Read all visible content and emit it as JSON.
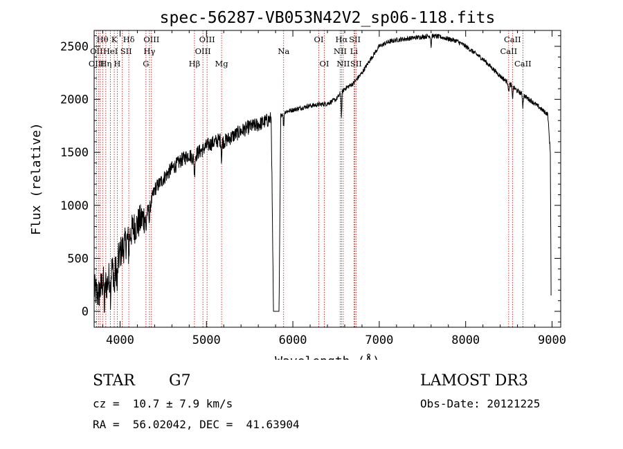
{
  "chart_data": {
    "type": "line",
    "title": "spec-56287-VB053N42V2_sp06-118.fits",
    "xlabel": "Wavelength (Å)",
    "ylabel": "Flux (relative)",
    "xlim": [
      3700,
      9100
    ],
    "ylim": [
      -150,
      2650
    ],
    "xticks": [
      4000,
      5000,
      6000,
      7000,
      8000,
      9000
    ],
    "xtick_labels": [
      "4000",
      "5000",
      "6000",
      "7000",
      "8000",
      "9000"
    ],
    "yticks": [
      0,
      500,
      1000,
      1500,
      2000,
      2500
    ],
    "ytick_labels": [
      "0",
      "500",
      "1000",
      "1500",
      "2000",
      "2500"
    ],
    "grid": false,
    "series": [
      {
        "name": "flux",
        "points": [
          [
            3700,
            200
          ],
          [
            3750,
            150
          ],
          [
            3800,
            280
          ],
          [
            3850,
            250
          ],
          [
            3900,
            400
          ],
          [
            3950,
            380
          ],
          [
            4000,
            550
          ],
          [
            4050,
            620
          ],
          [
            4100,
            700
          ],
          [
            4150,
            780
          ],
          [
            4200,
            820
          ],
          [
            4250,
            870
          ],
          [
            4300,
            900
          ],
          [
            4350,
            1000
          ],
          [
            4400,
            1150
          ],
          [
            4450,
            1200
          ],
          [
            4500,
            1250
          ],
          [
            4550,
            1300
          ],
          [
            4600,
            1350
          ],
          [
            4650,
            1380
          ],
          [
            4700,
            1420
          ],
          [
            4750,
            1450
          ],
          [
            4800,
            1480
          ],
          [
            4850,
            1440
          ],
          [
            4900,
            1500
          ],
          [
            4950,
            1520
          ],
          [
            5000,
            1560
          ],
          [
            5050,
            1580
          ],
          [
            5100,
            1600
          ],
          [
            5150,
            1620
          ],
          [
            5200,
            1600
          ],
          [
            5300,
            1650
          ],
          [
            5400,
            1700
          ],
          [
            5500,
            1740
          ],
          [
            5600,
            1760
          ],
          [
            5700,
            1800
          ],
          [
            5750,
            1820
          ],
          [
            5775,
            0
          ],
          [
            5840,
            0
          ],
          [
            5860,
            1850
          ],
          [
            5900,
            1880
          ],
          [
            6000,
            1900
          ],
          [
            6100,
            1920
          ],
          [
            6200,
            1940
          ],
          [
            6300,
            1950
          ],
          [
            6400,
            1960
          ],
          [
            6500,
            2000
          ],
          [
            6600,
            2100
          ],
          [
            6700,
            2150
          ],
          [
            6800,
            2250
          ],
          [
            6900,
            2380
          ],
          [
            7000,
            2500
          ],
          [
            7100,
            2540
          ],
          [
            7200,
            2560
          ],
          [
            7300,
            2570
          ],
          [
            7400,
            2580
          ],
          [
            7500,
            2590
          ],
          [
            7600,
            2600
          ],
          [
            7700,
            2590
          ],
          [
            7800,
            2570
          ],
          [
            7900,
            2550
          ],
          [
            8000,
            2500
          ],
          [
            8100,
            2440
          ],
          [
            8200,
            2380
          ],
          [
            8300,
            2300
          ],
          [
            8400,
            2220
          ],
          [
            8500,
            2150
          ],
          [
            8600,
            2080
          ],
          [
            8700,
            2020
          ],
          [
            8800,
            1960
          ],
          [
            8900,
            1890
          ],
          [
            8950,
            1860
          ],
          [
            8980,
            1500
          ],
          [
            8990,
            0
          ]
        ]
      }
    ],
    "absorption_dips": [
      {
        "wavelength": 3820,
        "depth": 250
      },
      {
        "wavelength": 3890,
        "depth": 200
      },
      {
        "wavelength": 3933,
        "depth": 220
      },
      {
        "wavelength": 3968,
        "depth": 220
      },
      {
        "wavelength": 4101,
        "depth": 150
      },
      {
        "wavelength": 4300,
        "depth": 150
      },
      {
        "wavelength": 4340,
        "depth": 120
      },
      {
        "wavelength": 4861,
        "depth": 160
      },
      {
        "wavelength": 5175,
        "depth": 180
      },
      {
        "wavelength": 5893,
        "depth": 140
      },
      {
        "wavelength": 6563,
        "depth": 220
      },
      {
        "wavelength": 7600,
        "depth": 100
      },
      {
        "wavelength": 8498,
        "depth": 90
      },
      {
        "wavelength": 8542,
        "depth": 120
      },
      {
        "wavelength": 8662,
        "depth": 110
      }
    ],
    "line_markers": [
      3727,
      3750,
      3771,
      3798,
      3835,
      3889,
      3933,
      3968,
      4026,
      4101,
      4300,
      4340,
      4363,
      4861,
      4959,
      5007,
      5175,
      5893,
      6300,
      6364,
      6548,
      6563,
      6583,
      6707,
      6717,
      6731,
      8498,
      8542,
      8662
    ],
    "line_labels": [
      {
        "text": "Hθ",
        "wavelength": 3797,
        "row": 1,
        "greek": "θ"
      },
      {
        "text": "K",
        "wavelength": 3933,
        "row": 1
      },
      {
        "text": "Hδ",
        "wavelength": 4101,
        "row": 1,
        "greek": "δ"
      },
      {
        "text": "OIII",
        "wavelength": 4363,
        "row": 1
      },
      {
        "text": "OIII",
        "wavelength": 5007,
        "row": 1
      },
      {
        "text": "OI",
        "wavelength": 6300,
        "row": 1
      },
      {
        "text": "Hα",
        "wavelength": 6563,
        "row": 1,
        "greek": "α"
      },
      {
        "text": "SII",
        "wavelength": 6717,
        "row": 1
      },
      {
        "text": "CaII",
        "wavelength": 8542,
        "row": 1
      },
      {
        "text": "OII",
        "wavelength": 3727,
        "row": 2
      },
      {
        "text": "HeI",
        "wavelength": 3889,
        "row": 2
      },
      {
        "text": "SII",
        "wavelength": 4070,
        "row": 2
      },
      {
        "text": "Hγ",
        "wavelength": 4340,
        "row": 2,
        "greek": "γ"
      },
      {
        "text": "OIII",
        "wavelength": 4959,
        "row": 2
      },
      {
        "text": "Na",
        "wavelength": 5893,
        "row": 2
      },
      {
        "text": "NII",
        "wavelength": 6548,
        "row": 2
      },
      {
        "text": "Li",
        "wavelength": 6707,
        "row": 2
      },
      {
        "text": "CaII",
        "wavelength": 8498,
        "row": 2
      },
      {
        "text": "OIII",
        "wavelength": 3727,
        "row": 3
      },
      {
        "text": "Hη",
        "wavelength": 3835,
        "row": 3,
        "greek": "η"
      },
      {
        "text": "H",
        "wavelength": 3968,
        "row": 3
      },
      {
        "text": "G",
        "wavelength": 4300,
        "row": 3
      },
      {
        "text": "Hβ",
        "wavelength": 4861,
        "row": 3,
        "greek": "β"
      },
      {
        "text": "Mg",
        "wavelength": 5175,
        "row": 3
      },
      {
        "text": "OI",
        "wavelength": 6364,
        "row": 3
      },
      {
        "text": "NII",
        "wavelength": 6583,
        "row": 3
      },
      {
        "text": "SII",
        "wavelength": 6731,
        "row": 3
      },
      {
        "text": "CaII",
        "wavelength": 8662,
        "row": 3
      }
    ],
    "colors": {
      "line": "#000000",
      "marker": "#cc0000",
      "axes": "#000000"
    }
  },
  "info": {
    "object_class": "STAR",
    "subclass": "G7",
    "survey": "LAMOST DR3",
    "redshift": "cz =  10.7 ± 7.9 km/s",
    "obs_date": "Obs-Date: 20121225",
    "coords": "RA =  56.02042, DEC =  41.63904"
  }
}
